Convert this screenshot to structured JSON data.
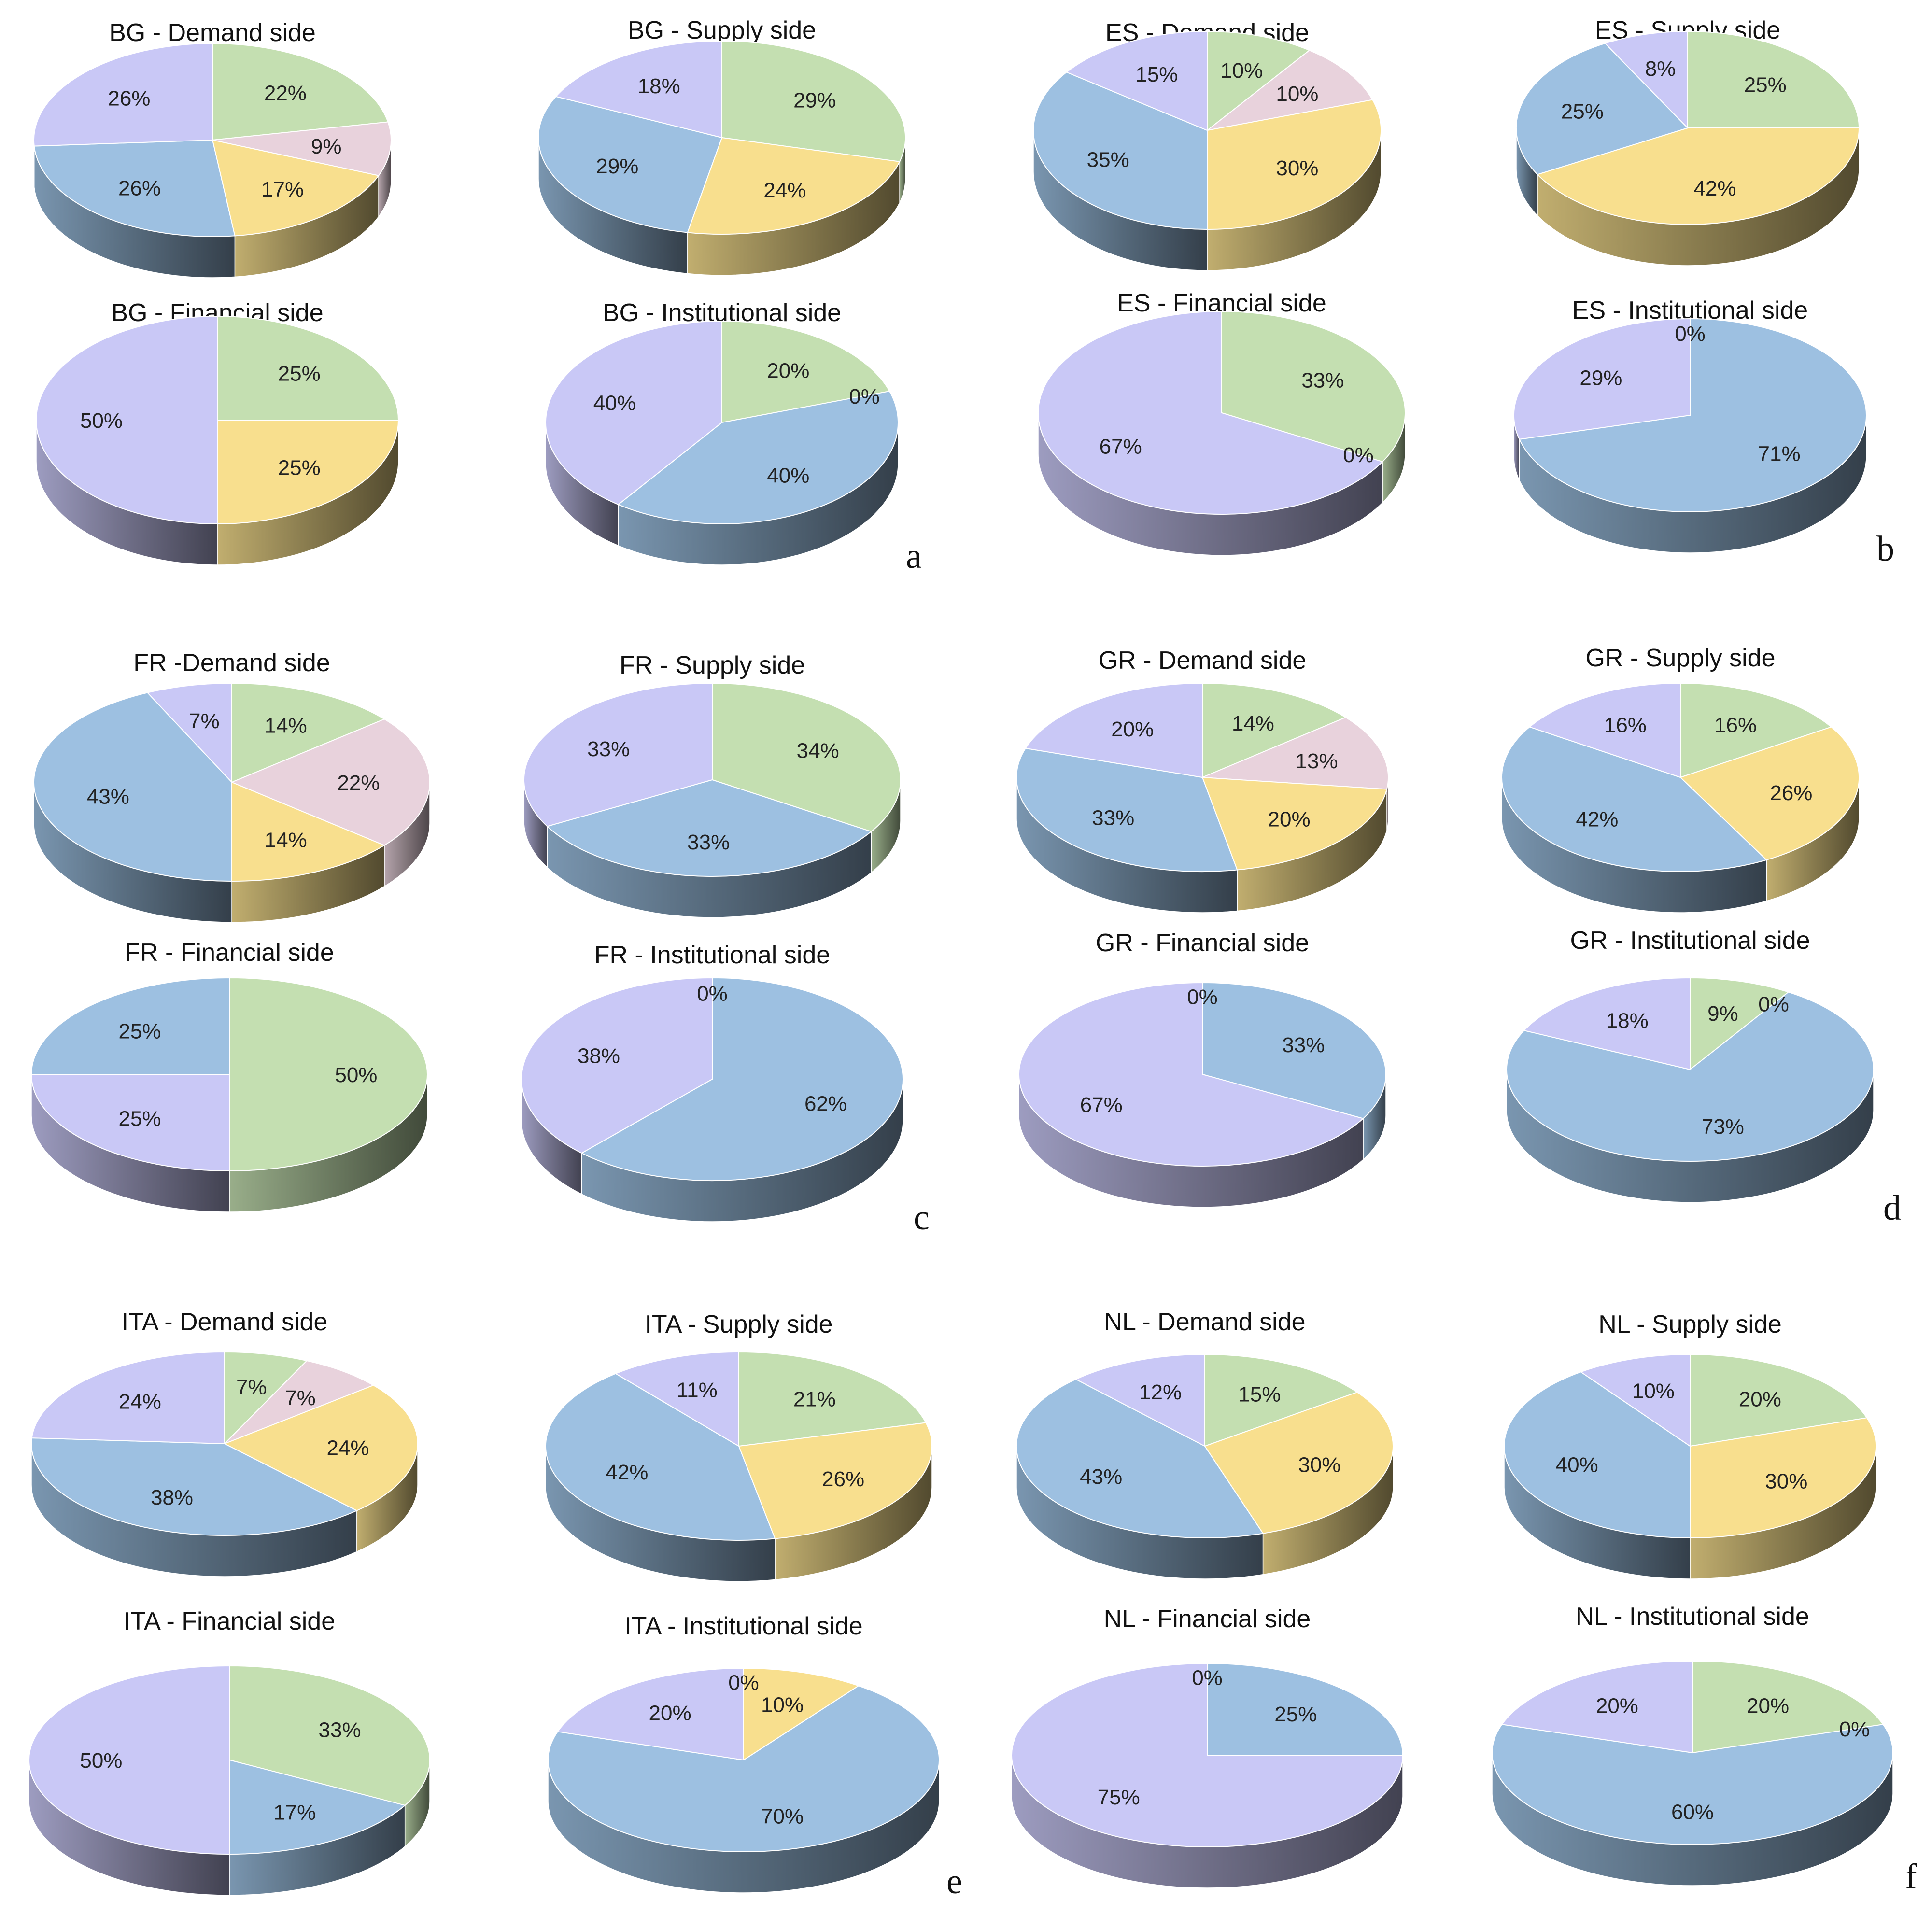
{
  "colors": {
    "green": "#c4dfb1",
    "pink": "#e8d2dc",
    "yellow": "#f8df8e",
    "blue": "#9dc0e1",
    "lavender": "#c9c8f6"
  },
  "panel_letters": [
    "a",
    "b",
    "c",
    "d",
    "e",
    "f"
  ],
  "chart_data": [
    {
      "type": "pie",
      "title": "BG - Demand side",
      "slices": [
        {
          "color": "green",
          "value": 22,
          "label": "22%"
        },
        {
          "color": "pink",
          "value": 9,
          "label": "9%"
        },
        {
          "color": "yellow",
          "value": 17,
          "label": "17%"
        },
        {
          "color": "blue",
          "value": 26,
          "label": "26%"
        },
        {
          "color": "lavender",
          "value": 26,
          "label": "26%"
        }
      ]
    },
    {
      "type": "pie",
      "title": "BG - Supply side",
      "slices": [
        {
          "color": "green",
          "value": 29,
          "label": "29%"
        },
        {
          "color": "yellow",
          "value": 24,
          "label": "24%"
        },
        {
          "color": "blue",
          "value": 29,
          "label": "29%"
        },
        {
          "color": "lavender",
          "value": 18,
          "label": "18%"
        }
      ]
    },
    {
      "type": "pie",
      "title": "ES - Demand side",
      "slices": [
        {
          "color": "green",
          "value": 10,
          "label": "10%"
        },
        {
          "color": "pink",
          "value": 10,
          "label": "10%"
        },
        {
          "color": "yellow",
          "value": 30,
          "label": "30%"
        },
        {
          "color": "blue",
          "value": 35,
          "label": "35%"
        },
        {
          "color": "lavender",
          "value": 15,
          "label": "15%"
        }
      ]
    },
    {
      "type": "pie",
      "title": "ES - Supply side",
      "slices": [
        {
          "color": "green",
          "value": 25,
          "label": "25%"
        },
        {
          "color": "yellow",
          "value": 42,
          "label": "42%"
        },
        {
          "color": "blue",
          "value": 25,
          "label": "25%"
        },
        {
          "color": "lavender",
          "value": 8,
          "label": "8%"
        }
      ]
    },
    {
      "type": "pie",
      "title": "BG - Financial side",
      "slices": [
        {
          "color": "green",
          "value": 25,
          "label": "25%"
        },
        {
          "color": "yellow",
          "value": 25,
          "label": "25%"
        },
        {
          "color": "lavender",
          "value": 50,
          "label": "50%"
        }
      ]
    },
    {
      "type": "pie",
      "title": "BG - Institutional side",
      "slices": [
        {
          "color": "green",
          "value": 20,
          "label": "20%"
        },
        {
          "color": "yellow",
          "value": 0,
          "label": "0%"
        },
        {
          "color": "blue",
          "value": 40,
          "label": "40%"
        },
        {
          "color": "lavender",
          "value": 40,
          "label": "40%"
        }
      ]
    },
    {
      "type": "pie",
      "title": "ES - Financial side",
      "slices": [
        {
          "color": "green",
          "value": 33,
          "label": "33%"
        },
        {
          "color": "blue",
          "value": 0,
          "label": "0%"
        },
        {
          "color": "lavender",
          "value": 67,
          "label": "67%"
        }
      ]
    },
    {
      "type": "pie",
      "title": "ES - Institutional side",
      "slices": [
        {
          "color": "green",
          "value": 0,
          "label": "0%"
        },
        {
          "color": "blue",
          "value": 71,
          "label": "71%"
        },
        {
          "color": "lavender",
          "value": 29,
          "label": "29%"
        }
      ]
    },
    {
      "type": "pie",
      "title": "FR -Demand side",
      "slices": [
        {
          "color": "green",
          "value": 14,
          "label": "14%"
        },
        {
          "color": "pink",
          "value": 22,
          "label": "22%"
        },
        {
          "color": "yellow",
          "value": 14,
          "label": "14%"
        },
        {
          "color": "blue",
          "value": 43,
          "label": "43%"
        },
        {
          "color": "lavender",
          "value": 7,
          "label": "7%"
        }
      ]
    },
    {
      "type": "pie",
      "title": "FR - Supply side",
      "slices": [
        {
          "color": "green",
          "value": 34,
          "label": "34%"
        },
        {
          "color": "blue",
          "value": 33,
          "label": "33%"
        },
        {
          "color": "lavender",
          "value": 33,
          "label": "33%"
        }
      ]
    },
    {
      "type": "pie",
      "title": "GR - Demand side",
      "slices": [
        {
          "color": "green",
          "value": 14,
          "label": "14%"
        },
        {
          "color": "pink",
          "value": 13,
          "label": "13%"
        },
        {
          "color": "yellow",
          "value": 20,
          "label": "20%"
        },
        {
          "color": "blue",
          "value": 33,
          "label": "33%"
        },
        {
          "color": "lavender",
          "value": 20,
          "label": "20%"
        }
      ]
    },
    {
      "type": "pie",
      "title": "GR - Supply side",
      "slices": [
        {
          "color": "green",
          "value": 16,
          "label": "16%"
        },
        {
          "color": "yellow",
          "value": 26,
          "label": "26%"
        },
        {
          "color": "blue",
          "value": 42,
          "label": "42%"
        },
        {
          "color": "lavender",
          "value": 16,
          "label": "16%"
        }
      ]
    },
    {
      "type": "pie",
      "title": "FR - Financial side",
      "slices": [
        {
          "color": "green",
          "value": 50,
          "label": "50%"
        },
        {
          "color": "lavender",
          "value": 25,
          "label": "25%"
        },
        {
          "color": "blue",
          "value": 25,
          "label": "25%"
        }
      ]
    },
    {
      "type": "pie",
      "title": "FR - Institutional side",
      "slices": [
        {
          "color": "blue",
          "value": 62,
          "label": "62%"
        },
        {
          "color": "lavender",
          "value": 38,
          "label": "38%"
        },
        {
          "color": "green",
          "value": 0,
          "label": "0%"
        }
      ]
    },
    {
      "type": "pie",
      "title": "GR - Financial side",
      "slices": [
        {
          "color": "blue",
          "value": 33,
          "label": "33%"
        },
        {
          "color": "lavender",
          "value": 67,
          "label": "67%"
        },
        {
          "color": "green",
          "value": 0,
          "label": "0%"
        }
      ]
    },
    {
      "type": "pie",
      "title": "GR - Institutional side",
      "slices": [
        {
          "color": "green",
          "value": 9,
          "label": "9%"
        },
        {
          "color": "yellow",
          "value": 0,
          "label": "0%"
        },
        {
          "color": "blue",
          "value": 73,
          "label": "73%"
        },
        {
          "color": "lavender",
          "value": 18,
          "label": "18%"
        }
      ]
    },
    {
      "type": "pie",
      "title": "ITA - Demand side",
      "slices": [
        {
          "color": "green",
          "value": 7,
          "label": "7%"
        },
        {
          "color": "pink",
          "value": 7,
          "label": "7%"
        },
        {
          "color": "yellow",
          "value": 24,
          "label": "24%"
        },
        {
          "color": "blue",
          "value": 38,
          "label": "38%"
        },
        {
          "color": "lavender",
          "value": 24,
          "label": "24%"
        }
      ]
    },
    {
      "type": "pie",
      "title": "ITA - Supply side",
      "slices": [
        {
          "color": "green",
          "value": 21,
          "label": "21%"
        },
        {
          "color": "yellow",
          "value": 26,
          "label": "26%"
        },
        {
          "color": "blue",
          "value": 42,
          "label": "42%"
        },
        {
          "color": "lavender",
          "value": 11,
          "label": "11%"
        }
      ]
    },
    {
      "type": "pie",
      "title": "NL - Demand side",
      "slices": [
        {
          "color": "green",
          "value": 15,
          "label": "15%"
        },
        {
          "color": "yellow",
          "value": 30,
          "label": "30%"
        },
        {
          "color": "blue",
          "value": 43,
          "label": "43%"
        },
        {
          "color": "lavender",
          "value": 12,
          "label": "12%"
        }
      ]
    },
    {
      "type": "pie",
      "title": "NL - Supply side",
      "slices": [
        {
          "color": "green",
          "value": 20,
          "label": "20%"
        },
        {
          "color": "yellow",
          "value": 30,
          "label": "30%"
        },
        {
          "color": "blue",
          "value": 40,
          "label": "40%"
        },
        {
          "color": "lavender",
          "value": 10,
          "label": "10%"
        }
      ]
    },
    {
      "type": "pie",
      "title": "ITA - Financial side",
      "slices": [
        {
          "color": "green",
          "value": 33,
          "label": "33%"
        },
        {
          "color": "blue",
          "value": 17,
          "label": "17%"
        },
        {
          "color": "lavender",
          "value": 50,
          "label": "50%"
        }
      ]
    },
    {
      "type": "pie",
      "title": "ITA - Institutional side",
      "slices": [
        {
          "color": "yellow",
          "value": 10,
          "label": "10%"
        },
        {
          "color": "blue",
          "value": 70,
          "label": "70%"
        },
        {
          "color": "lavender",
          "value": 20,
          "label": "20%"
        },
        {
          "color": "green",
          "value": 0,
          "label": "0%"
        }
      ]
    },
    {
      "type": "pie",
      "title": "NL - Financial side",
      "slices": [
        {
          "color": "blue",
          "value": 25,
          "label": "25%"
        },
        {
          "color": "lavender",
          "value": 75,
          "label": "75%"
        },
        {
          "color": "green",
          "value": 0,
          "label": "0%"
        }
      ]
    },
    {
      "type": "pie",
      "title": "NL - Institutional side",
      "slices": [
        {
          "color": "green",
          "value": 20,
          "label": "20%"
        },
        {
          "color": "yellow",
          "value": 0,
          "label": "0%"
        },
        {
          "color": "blue",
          "value": 60,
          "label": "60%"
        },
        {
          "color": "lavender",
          "value": 20,
          "label": "20%"
        }
      ]
    }
  ]
}
